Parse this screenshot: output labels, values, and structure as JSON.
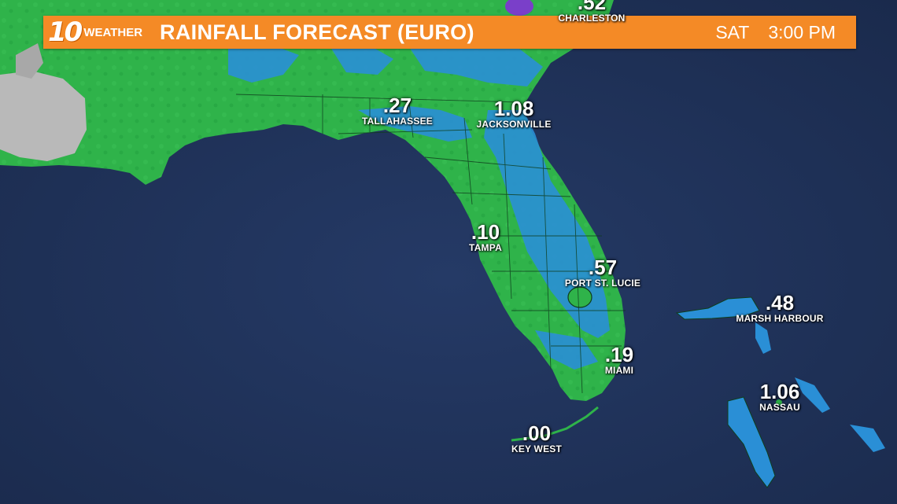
{
  "header": {
    "logo_number": "10",
    "logo_word": "WEATHER",
    "title": "RAINFALL FORECAST (EURO)",
    "day": "SAT",
    "time": "3:00 PM"
  },
  "colors": {
    "ocean": "#1f3157",
    "rain_light": "#2fb34a",
    "rain_moderate": "#2a8fd6",
    "rain_heavy": "#7a3fc9",
    "no_data": "#b9b9b9",
    "header": "#f48a26"
  },
  "cities": [
    {
      "name": "CHARLESTON",
      "value": ".52"
    },
    {
      "name": "TALLAHASSEE",
      "value": ".27"
    },
    {
      "name": "JACKSONVILLE",
      "value": "1.08"
    },
    {
      "name": "TAMPA",
      "value": ".10"
    },
    {
      "name": "PORT ST. LUCIE",
      "value": ".57"
    },
    {
      "name": "MIAMI",
      "value": ".19"
    },
    {
      "name": "KEY WEST",
      "value": ".00"
    },
    {
      "name": "MARSH HARBOUR",
      "value": ".48"
    },
    {
      "name": "NASSAU",
      "value": "1.06"
    }
  ]
}
